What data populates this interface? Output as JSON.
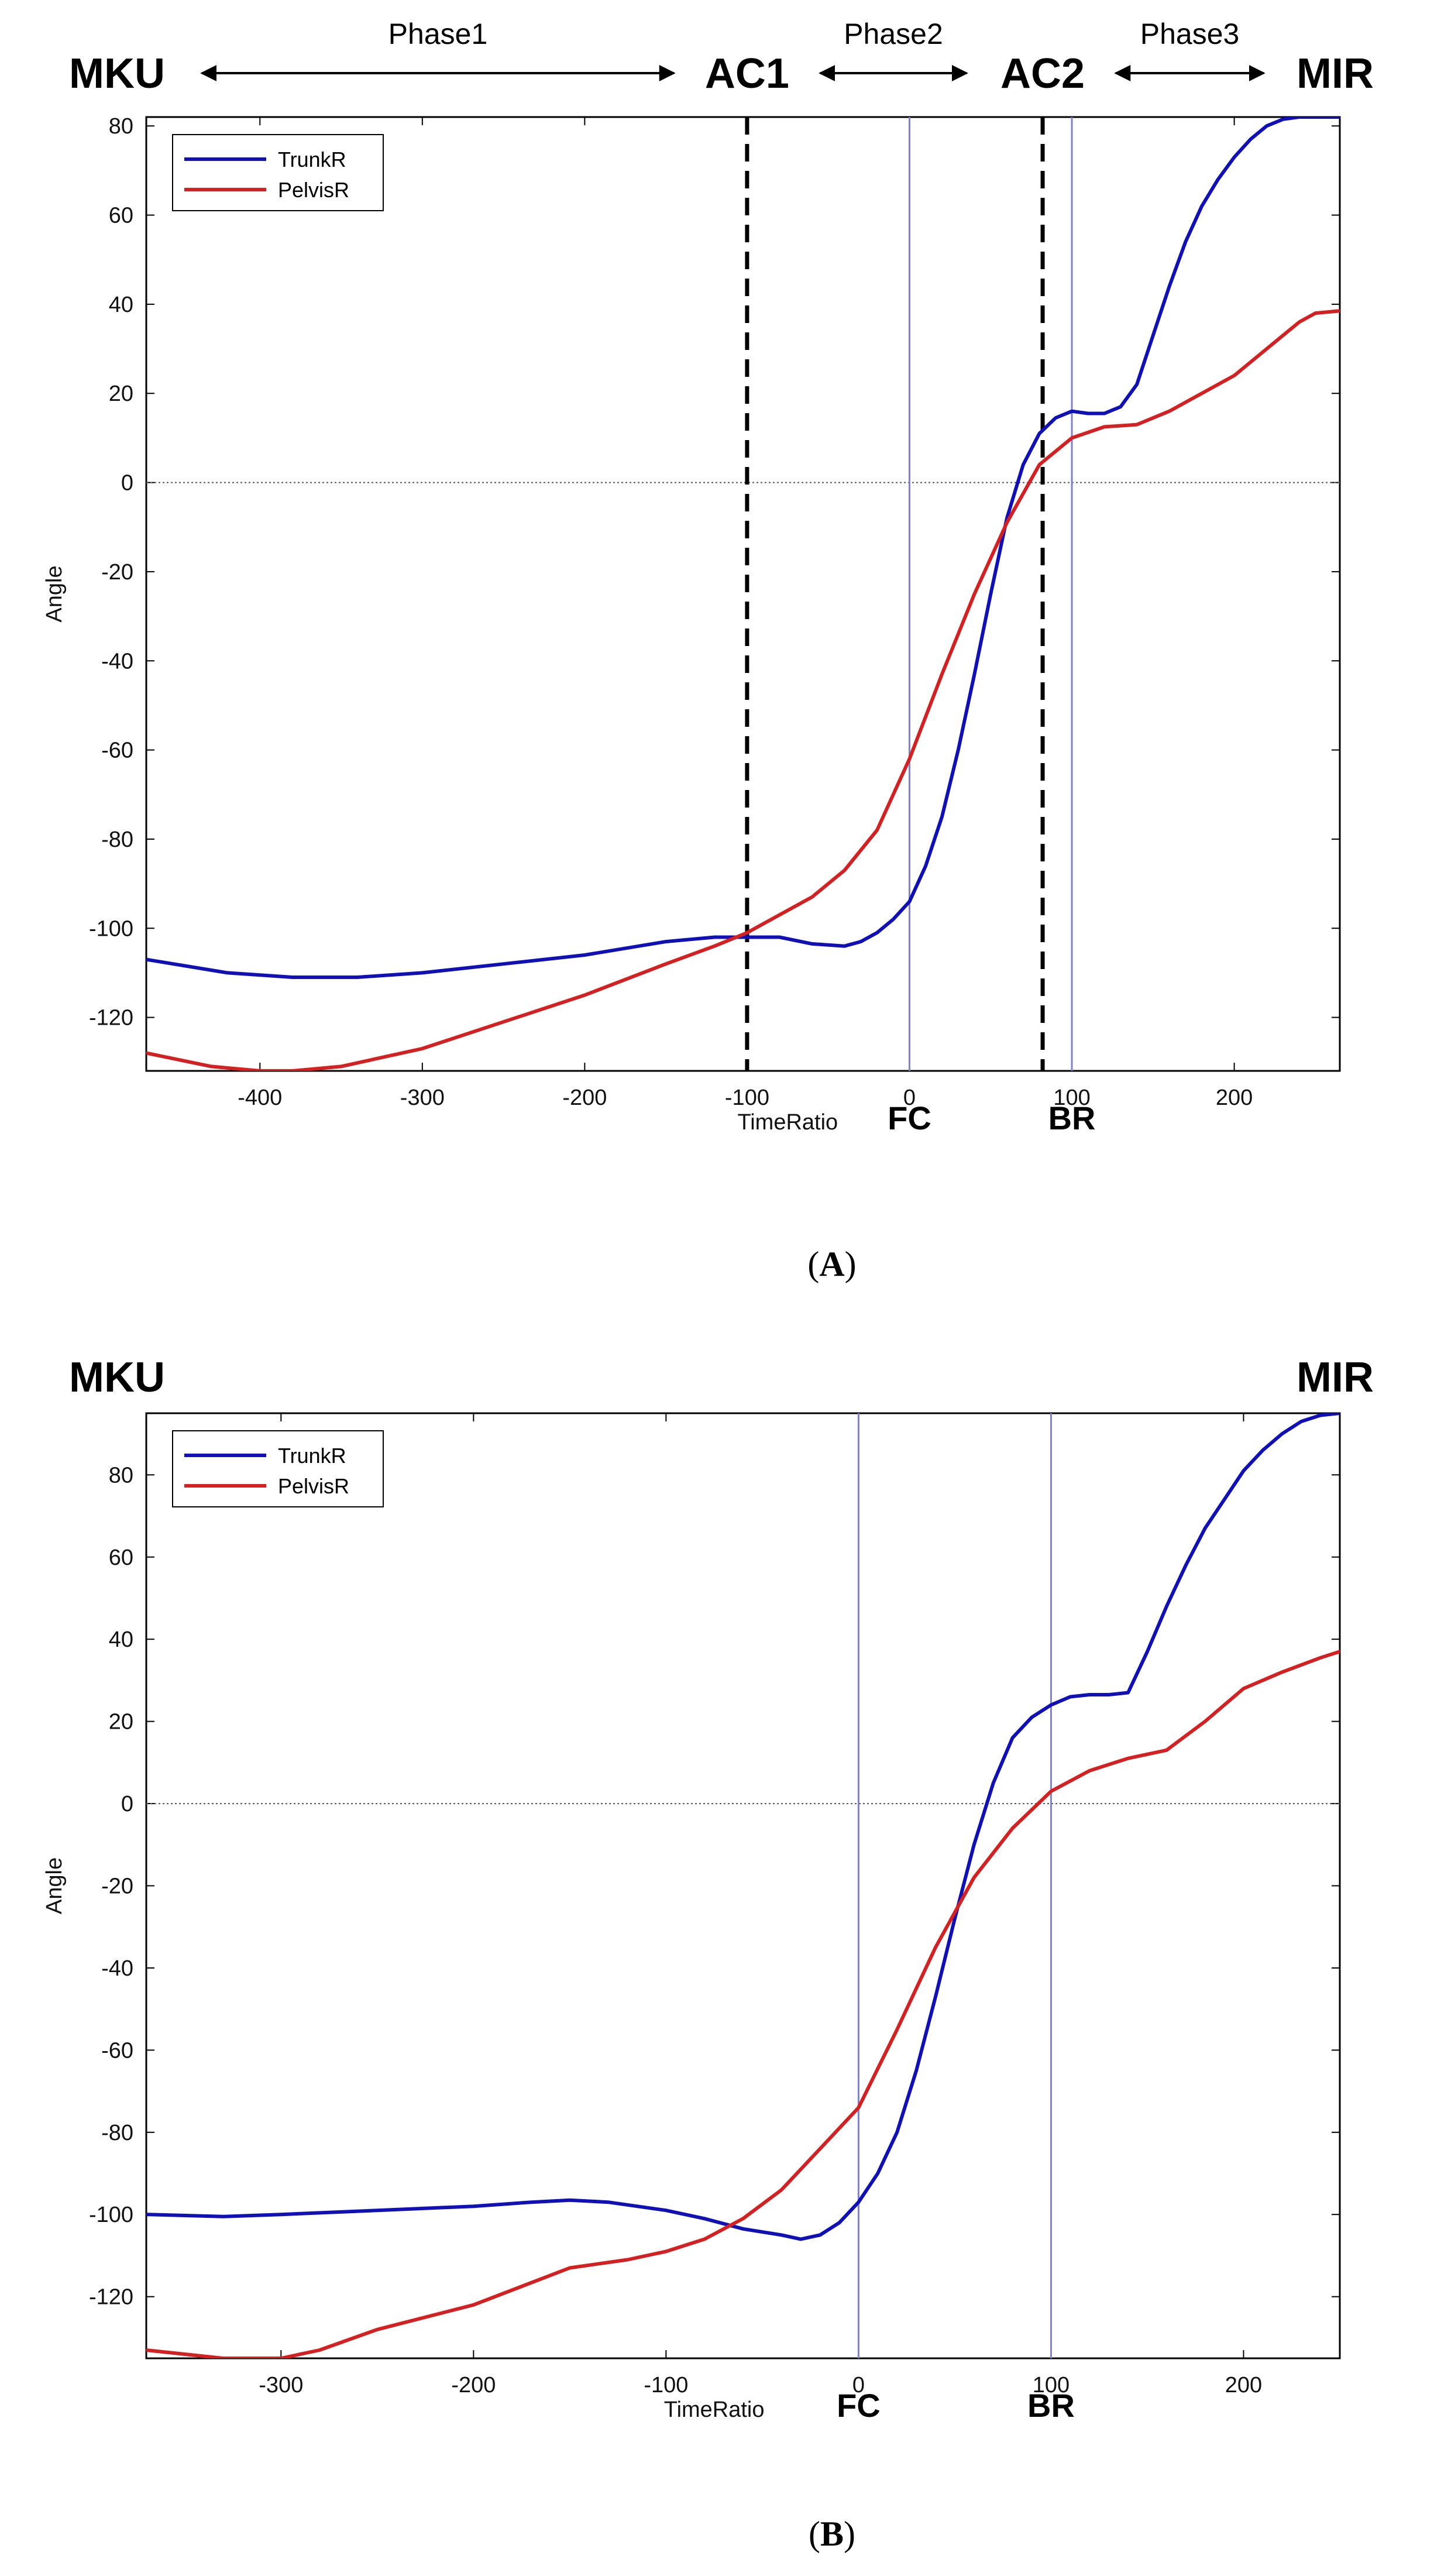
{
  "colors": {
    "trunk": "#1010b8",
    "pelvis": "#d42020",
    "event_line": "#8080d0",
    "zero_line": "#555555"
  },
  "chart_data": [
    {
      "type": "line",
      "panel": "A",
      "caption_open": "(",
      "caption_letter": "A",
      "caption_close": ")",
      "xlabel": "TimeRatio",
      "ylabel": "Angle",
      "xlim": [
        -470,
        265
      ],
      "ylim": [
        -132,
        82
      ],
      "xticks": [
        -400,
        -300,
        -200,
        -100,
        0,
        100,
        200
      ],
      "yticks": [
        80,
        60,
        40,
        20,
        0,
        -20,
        -40,
        -60,
        -80,
        -100,
        -120
      ],
      "zero_line": true,
      "legend_position": "top-left",
      "series": [
        {
          "name": "TrunkR",
          "color_key": "trunk",
          "x": [
            -470,
            -420,
            -380,
            -340,
            -300,
            -250,
            -200,
            -150,
            -120,
            -100,
            -80,
            -60,
            -40,
            -30,
            -20,
            -10,
            0,
            10,
            20,
            30,
            40,
            50,
            60,
            70,
            80,
            90,
            100,
            110,
            120,
            130,
            140,
            150,
            160,
            170,
            180,
            190,
            200,
            210,
            220,
            230,
            240,
            250,
            265
          ],
          "y": [
            -107,
            -110,
            -111,
            -111,
            -110,
            -108,
            -106,
            -103,
            -102,
            -102,
            -102,
            -103.5,
            -104,
            -103,
            -101,
            -98,
            -94,
            -86,
            -75,
            -60,
            -43,
            -25,
            -8,
            4,
            11,
            14.5,
            16,
            15.5,
            15.5,
            17,
            22,
            33,
            44,
            54,
            62,
            68,
            73,
            77,
            80,
            81.5,
            82,
            82,
            82
          ]
        },
        {
          "name": "PelvisR",
          "color_key": "pelvis",
          "x": [
            -470,
            -430,
            -400,
            -380,
            -350,
            -300,
            -250,
            -200,
            -150,
            -120,
            -100,
            -80,
            -60,
            -40,
            -20,
            0,
            20,
            40,
            60,
            80,
            100,
            120,
            140,
            160,
            180,
            200,
            220,
            240,
            250,
            265
          ],
          "y": [
            -128,
            -131,
            -132,
            -132,
            -131,
            -127,
            -121,
            -115,
            -108,
            -104,
            -101,
            -97,
            -93,
            -87,
            -78,
            -62,
            -43,
            -25,
            -9,
            4,
            10,
            12.5,
            13,
            16,
            20,
            24,
            30,
            36,
            38,
            38.5
          ]
        }
      ],
      "vlines": [
        {
          "x": -100,
          "style": "dashed"
        },
        {
          "x": 0,
          "style": "thin",
          "label": "FC"
        },
        {
          "x": 82,
          "style": "dashed"
        },
        {
          "x": 100,
          "style": "thin",
          "label": "BR"
        }
      ],
      "top_labels": {
        "start": "MKU",
        "ac1": "AC1",
        "ac2": "AC2",
        "end": "MIR",
        "phase1": "Phase1",
        "phase2": "Phase2",
        "phase3": "Phase3"
      }
    },
    {
      "type": "line",
      "panel": "B",
      "caption_open": "(",
      "caption_letter": "B",
      "caption_close": ")",
      "xlabel": "TimeRatio",
      "ylabel": "Angle",
      "xlim": [
        -370,
        250
      ],
      "ylim": [
        -135,
        95
      ],
      "xticks": [
        -300,
        -200,
        -100,
        0,
        100,
        200
      ],
      "yticks": [
        80,
        60,
        40,
        20,
        0,
        -20,
        -40,
        -60,
        -80,
        -100,
        -120
      ],
      "zero_line": true,
      "legend_position": "top-left",
      "series": [
        {
          "name": "TrunkR",
          "color_key": "trunk",
          "x": [
            -370,
            -330,
            -300,
            -250,
            -200,
            -170,
            -150,
            -130,
            -100,
            -80,
            -60,
            -40,
            -30,
            -20,
            -10,
            0,
            10,
            20,
            30,
            40,
            50,
            60,
            70,
            80,
            90,
            100,
            110,
            120,
            130,
            140,
            150,
            160,
            170,
            180,
            190,
            200,
            210,
            220,
            230,
            240,
            250
          ],
          "y": [
            -100,
            -100.5,
            -100,
            -99,
            -98,
            -97,
            -96.5,
            -97,
            -99,
            -101,
            -103.5,
            -105,
            -106,
            -105,
            -102,
            -97,
            -90,
            -80,
            -65,
            -47,
            -28,
            -10,
            5,
            16,
            21,
            24,
            26,
            26.5,
            26.5,
            27,
            37,
            48,
            58,
            67,
            74,
            81,
            86,
            90,
            93,
            94.5,
            95
          ]
        },
        {
          "name": "PelvisR",
          "color_key": "pelvis",
          "x": [
            -370,
            -330,
            -300,
            -280,
            -250,
            -200,
            -150,
            -120,
            -100,
            -80,
            -60,
            -40,
            -20,
            0,
            20,
            40,
            60,
            80,
            100,
            120,
            140,
            160,
            180,
            200,
            220,
            240,
            250
          ],
          "y": [
            -133,
            -135,
            -135,
            -133,
            -128,
            -122,
            -113,
            -111,
            -109,
            -106,
            -101,
            -94,
            -84,
            -74,
            -55,
            -35,
            -18,
            -6,
            3,
            8,
            11,
            13,
            20,
            28,
            32,
            35.5,
            37
          ]
        }
      ],
      "vlines": [
        {
          "x": 0,
          "style": "thin",
          "label": "FC"
        },
        {
          "x": 100,
          "style": "thin",
          "label": "BR"
        }
      ],
      "top_labels": {
        "start": "MKU",
        "end": "MIR"
      }
    }
  ]
}
